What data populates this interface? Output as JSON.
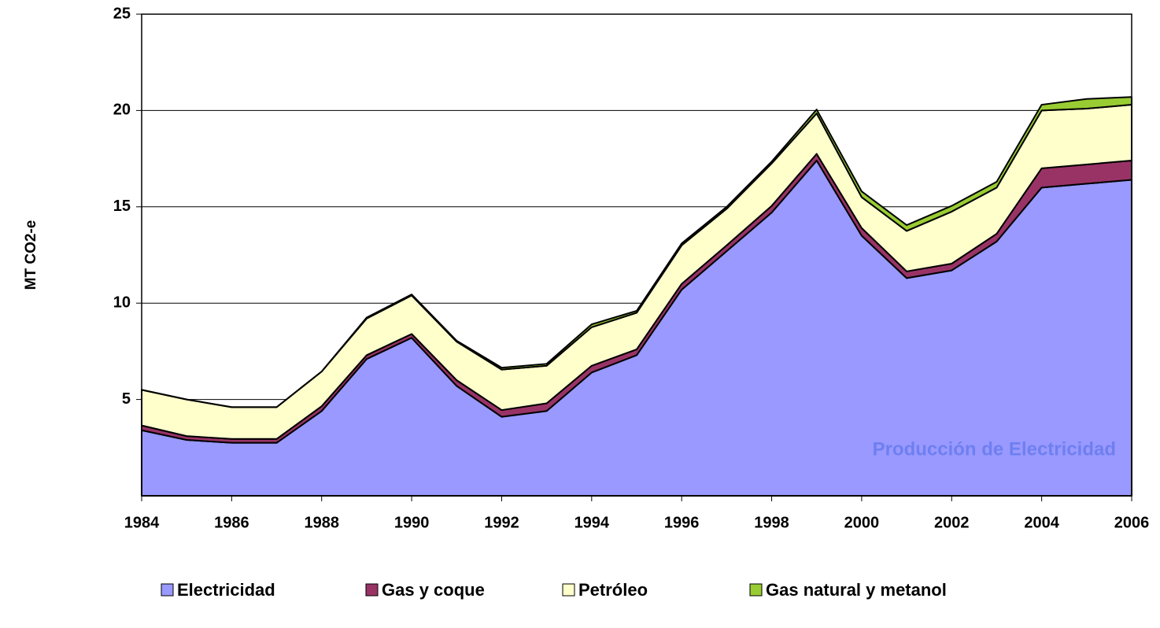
{
  "chart_data": {
    "type": "stacked_area",
    "y_label": "MT CO2-e",
    "annotation": "Producción de Electricidad",
    "x": [
      1984,
      1985,
      1986,
      1987,
      1988,
      1989,
      1990,
      1991,
      1992,
      1993,
      1994,
      1995,
      1996,
      1997,
      1998,
      1999,
      2000,
      2001,
      2002,
      2003,
      2004,
      2005,
      2006
    ],
    "xlim": [
      1984,
      2006
    ],
    "xticks": [
      1984,
      1986,
      1988,
      1990,
      1992,
      1994,
      1996,
      1998,
      2000,
      2002,
      2004,
      2006
    ],
    "ylim": [
      0,
      25
    ],
    "yticks": [
      5,
      10,
      15,
      20,
      25
    ],
    "grid": true,
    "series": [
      {
        "name": "Electricidad",
        "color": "#9999ff",
        "values": [
          3.4,
          2.9,
          2.75,
          2.75,
          4.4,
          7.1,
          8.2,
          5.7,
          4.1,
          4.4,
          6.4,
          7.3,
          10.7,
          12.7,
          14.7,
          17.4,
          13.5,
          11.3,
          11.7,
          13.2,
          16.0,
          16.2,
          16.4
        ]
      },
      {
        "name": "Gas y coque",
        "color": "#993366",
        "values": [
          0.25,
          0.2,
          0.2,
          0.2,
          0.25,
          0.2,
          0.2,
          0.3,
          0.35,
          0.4,
          0.35,
          0.3,
          0.3,
          0.3,
          0.35,
          0.35,
          0.4,
          0.35,
          0.35,
          0.4,
          1.0,
          1.0,
          1.0
        ]
      },
      {
        "name": "Petróleo",
        "color": "#ffffcc",
        "values": [
          1.85,
          1.9,
          1.65,
          1.65,
          1.8,
          1.9,
          2.0,
          2.0,
          2.1,
          1.95,
          2.0,
          1.9,
          2.0,
          1.9,
          2.2,
          2.1,
          1.6,
          2.1,
          2.7,
          2.4,
          3.0,
          2.9,
          2.9
        ]
      },
      {
        "name": "Gas natural y metanol",
        "color": "#99cc33",
        "values": [
          0,
          0,
          0,
          0,
          0,
          0.05,
          0.05,
          0.05,
          0.1,
          0.1,
          0.15,
          0.1,
          0.1,
          0.1,
          0.1,
          0.2,
          0.3,
          0.3,
          0.3,
          0.3,
          0.3,
          0.5,
          0.4
        ]
      }
    ]
  }
}
